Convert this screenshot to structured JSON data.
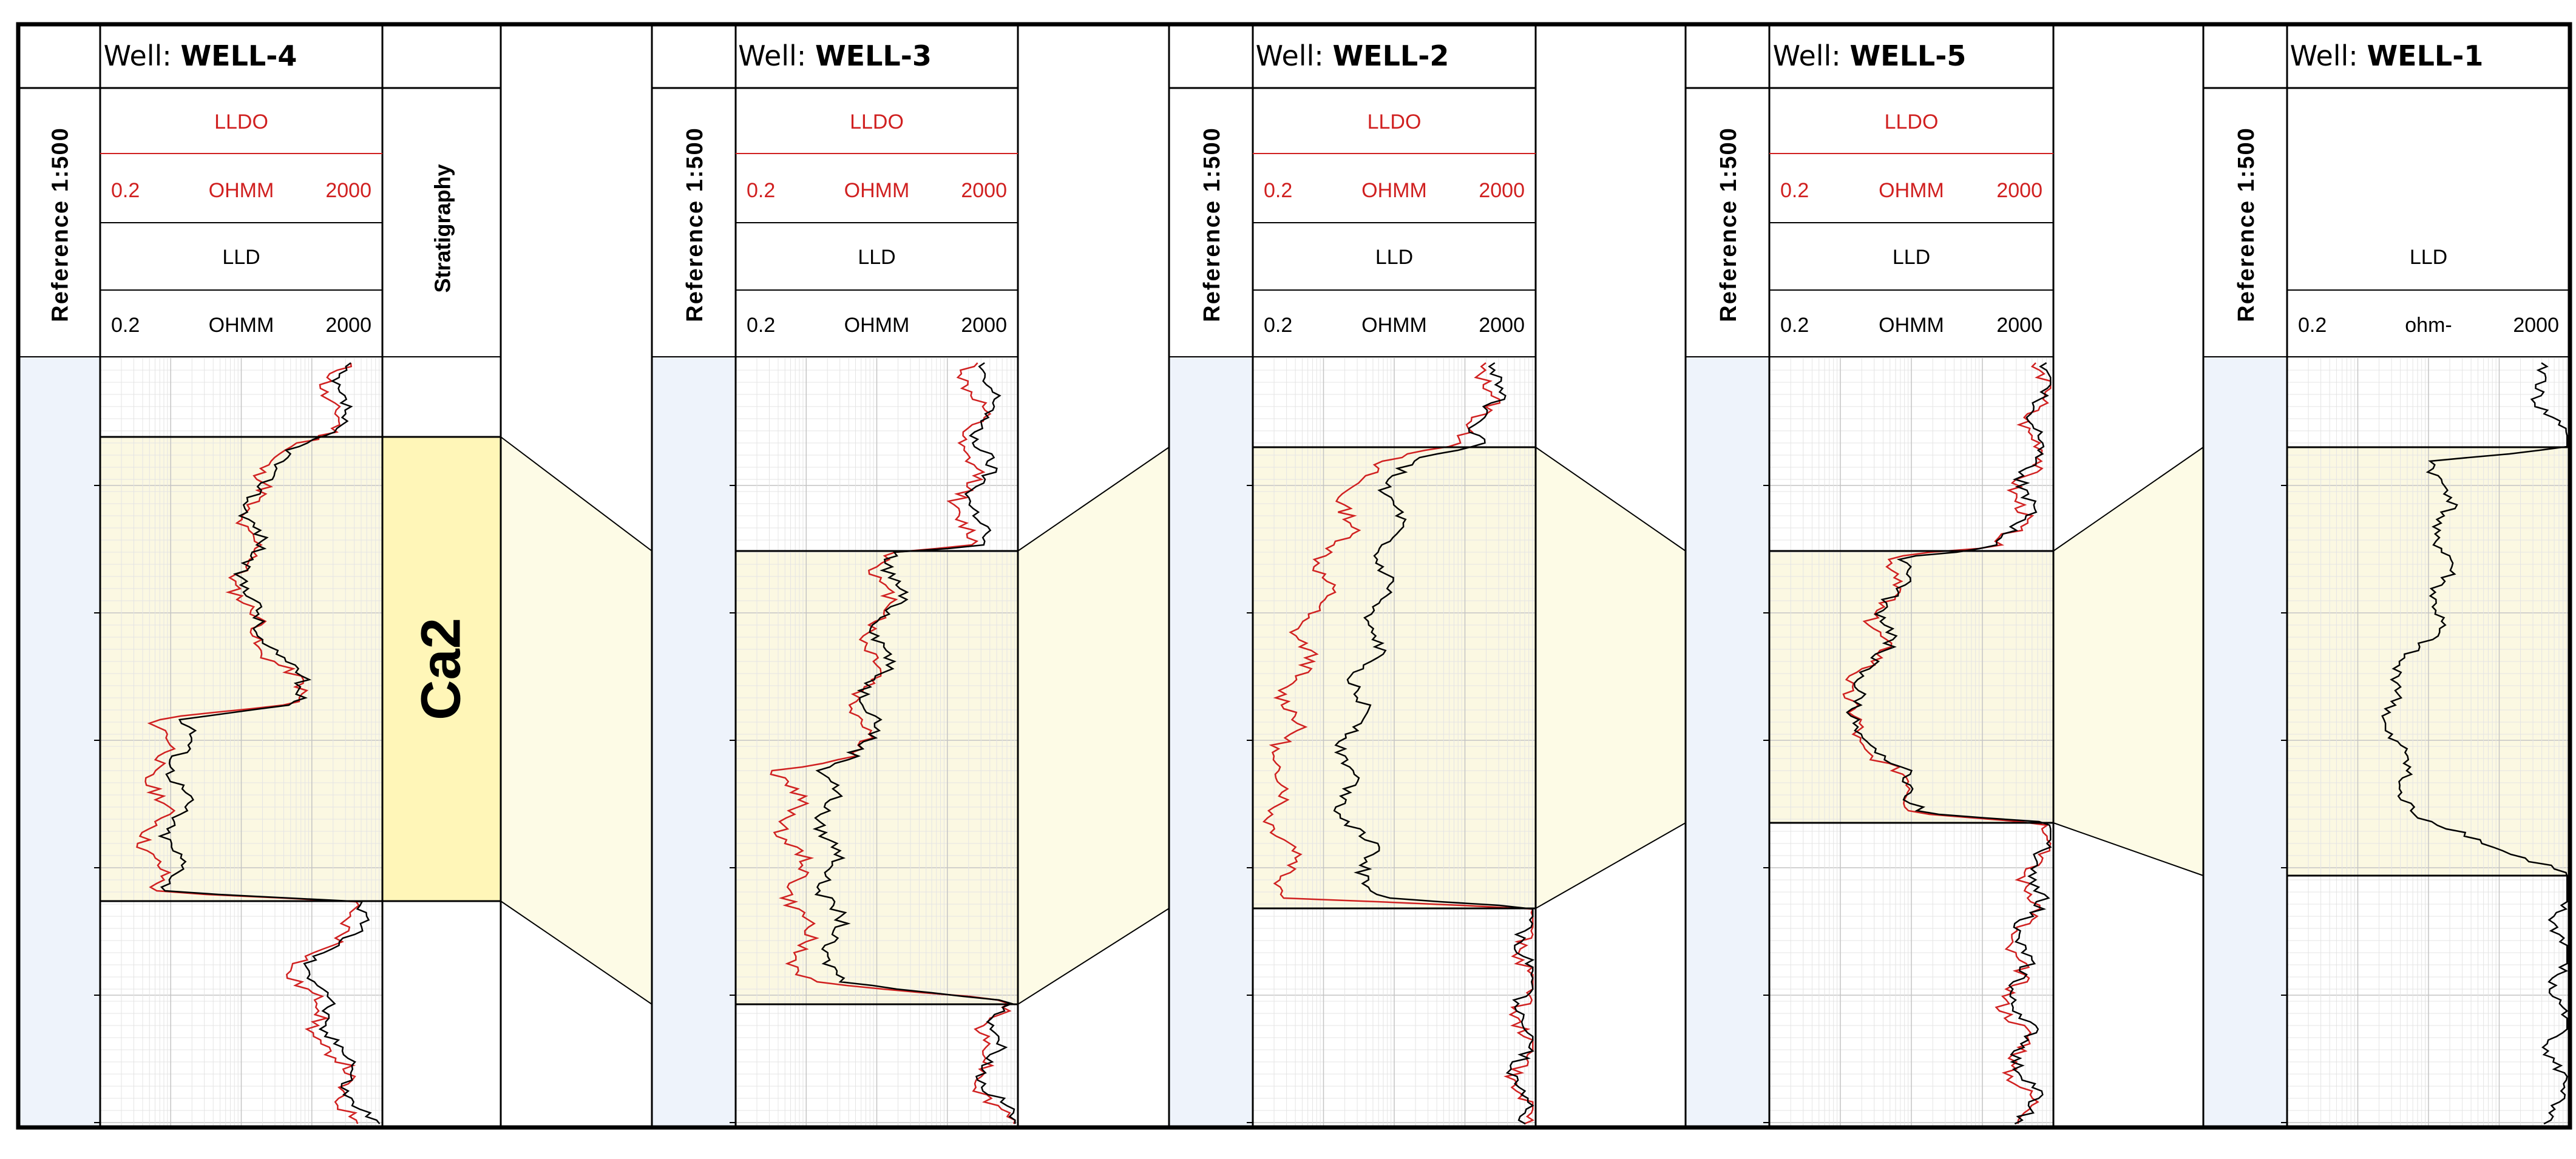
{
  "wells": [
    {
      "well_label": "Well:",
      "well_name": "WELL-4",
      "depth_track_label": "Reference 1:500",
      "curve1": {
        "name": "LLDO",
        "min": "0.2",
        "unit": "OHMM",
        "max": "2000",
        "color": "#d02020"
      },
      "curve2": {
        "name": "LLD",
        "min": "0.2",
        "unit": "OHMM",
        "max": "2000",
        "color": "#000000"
      },
      "has_stratigraphy": true,
      "stratigraphy_label": "Stratigraphy",
      "unit_label": "Ca2"
    },
    {
      "well_label": "Well:",
      "well_name": "WELL-3",
      "depth_track_label": "Reference 1:500",
      "curve1": {
        "name": "LLDO",
        "min": "0.2",
        "unit": "OHMM",
        "max": "2000",
        "color": "#d02020"
      },
      "curve2": {
        "name": "LLD",
        "min": "0.2",
        "unit": "OHMM",
        "max": "2000",
        "color": "#000000"
      },
      "has_stratigraphy": false
    },
    {
      "well_label": "Well:",
      "well_name": "WELL-2",
      "depth_track_label": "Reference 1:500",
      "curve1": {
        "name": "LLDO",
        "min": "0.2",
        "unit": "OHMM",
        "max": "2000",
        "color": "#d02020"
      },
      "curve2": {
        "name": "LLD",
        "min": "0.2",
        "unit": "OHMM",
        "max": "2000",
        "color": "#000000"
      },
      "has_stratigraphy": false
    },
    {
      "well_label": "Well:",
      "well_name": "WELL-5",
      "depth_track_label": "Reference 1:500",
      "curve1": {
        "name": "LLDO",
        "min": "0.2",
        "unit": "OHMM",
        "max": "2000",
        "color": "#d02020"
      },
      "curve2": {
        "name": "LLD",
        "min": "0.2",
        "unit": "OHMM",
        "max": "2000",
        "color": "#000000"
      },
      "has_stratigraphy": false
    },
    {
      "well_label": "Well:",
      "well_name": "WELL-1",
      "depth_track_label": "Reference 1:500",
      "curve1": null,
      "curve2": {
        "name": "LLD",
        "min": "0.2",
        "unit": "ohm-",
        "max": "2000",
        "color": "#000000"
      },
      "has_stratigraphy": false
    }
  ],
  "colors": {
    "frame": "#000000",
    "depth_track_fill": "#eef3fb",
    "zone_fill": "#fbf8e2",
    "strat_fill": "#fff6b8",
    "correlation_fill": "#fdfbe6",
    "grid_minor": "#e4e4e4",
    "grid_major": "#c4c4c4",
    "lldo_red": "#d02020",
    "lld_black": "#000000"
  }
}
